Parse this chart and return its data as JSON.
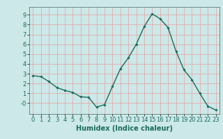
{
  "x": [
    0,
    1,
    2,
    3,
    4,
    5,
    6,
    7,
    8,
    9,
    10,
    11,
    12,
    13,
    14,
    15,
    16,
    17,
    18,
    19,
    20,
    21,
    22,
    23
  ],
  "y": [
    2.8,
    2.7,
    2.2,
    1.6,
    1.3,
    1.1,
    0.65,
    0.6,
    -0.4,
    -0.15,
    1.7,
    3.5,
    4.6,
    6.0,
    7.8,
    9.1,
    8.6,
    7.7,
    5.3,
    3.4,
    2.4,
    1.0,
    -0.3,
    -0.7
  ],
  "line_color": "#1a6b5a",
  "marker": "D",
  "marker_size": 1.8,
  "linewidth": 1.0,
  "xlabel": "Humidex (Indice chaleur)",
  "xlim": [
    -0.5,
    23.5
  ],
  "ylim": [
    -1.1,
    9.8
  ],
  "yticks": [
    0,
    1,
    2,
    3,
    4,
    5,
    6,
    7,
    8,
    9
  ],
  "xticks": [
    0,
    1,
    2,
    3,
    4,
    5,
    6,
    7,
    8,
    9,
    10,
    11,
    12,
    13,
    14,
    15,
    16,
    17,
    18,
    19,
    20,
    21,
    22,
    23
  ],
  "bg_color": "#cce8e8",
  "grid_color": "#e8a0a0",
  "tick_label_fontsize": 6.0,
  "xlabel_fontsize": 7.0,
  "ytick_labels": [
    "-0",
    "1",
    "2",
    "3",
    "4",
    "5",
    "6",
    "7",
    "8",
    "9"
  ]
}
